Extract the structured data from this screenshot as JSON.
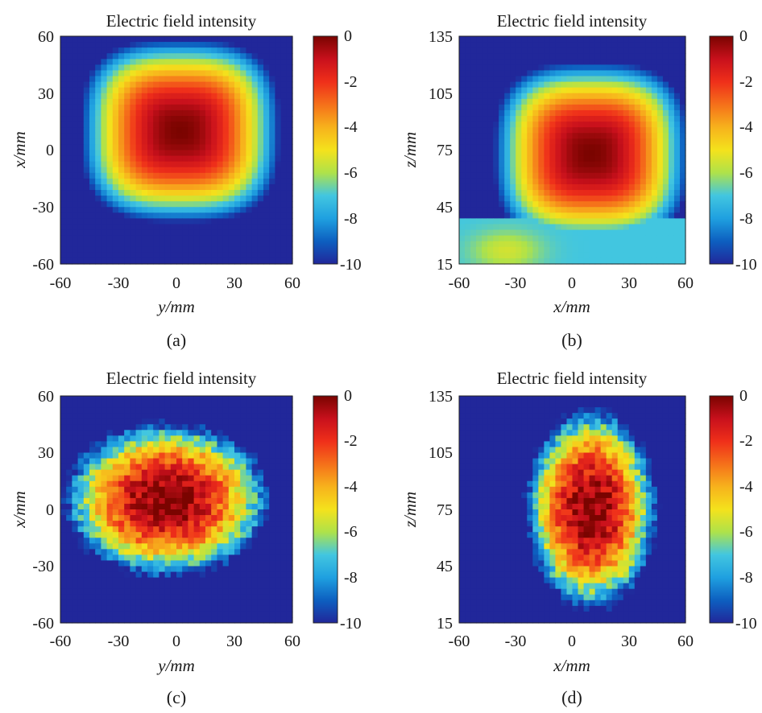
{
  "colorbar": {
    "ticks": [
      "0",
      "-2",
      "-4",
      "-6",
      "-8",
      "-10"
    ],
    "stops": [
      "#7a0400",
      "#c8101c",
      "#ef2f1a",
      "#f5701a",
      "#f7b21c",
      "#f4e21c",
      "#aee24a",
      "#42c6e0",
      "#1fa0e0",
      "#0d5fc0",
      "#21279a"
    ]
  },
  "chart_data": [
    {
      "type": "heatmap",
      "panel_label": "(a)",
      "title": "Electric field intensity",
      "xlabel": "y/mm",
      "ylabel": "x/mm",
      "x_ticks": [
        "-60",
        "-30",
        "0",
        "30",
        "60"
      ],
      "y_ticks": [
        "60",
        "30",
        "0",
        "-30",
        "-60"
      ],
      "xlim": [
        -60,
        60
      ],
      "ylim": [
        -60,
        60
      ],
      "value_range": [
        -10,
        0
      ],
      "peak": {
        "x": 2,
        "y": 10,
        "value": 0
      },
      "shape": "square-smooth"
    },
    {
      "type": "heatmap",
      "panel_label": "(b)",
      "title": "Electric field intensity",
      "xlabel": "x/mm",
      "ylabel": "z/mm",
      "x_ticks": [
        "-60",
        "-30",
        "0",
        "30",
        "60"
      ],
      "y_ticks": [
        "135",
        "105",
        "75",
        "45",
        "15"
      ],
      "xlim": [
        -60,
        60
      ],
      "ylim": [
        15,
        135
      ],
      "value_range": [
        -10,
        0
      ],
      "peak": {
        "x": 10,
        "y": 73,
        "value": 0
      },
      "shape": "square-smooth-bottom-lobe"
    },
    {
      "type": "heatmap",
      "panel_label": "(c)",
      "title": "Electric field intensity",
      "xlabel": "y/mm",
      "ylabel": "x/mm",
      "x_ticks": [
        "-60",
        "-30",
        "0",
        "30",
        "60"
      ],
      "y_ticks": [
        "60",
        "30",
        "0",
        "-30",
        "-60"
      ],
      "xlim": [
        -60,
        60
      ],
      "ylim": [
        -60,
        60
      ],
      "value_range": [
        -10,
        0
      ],
      "peak": {
        "x": -5,
        "y": 5,
        "value": 0
      },
      "shape": "noisy-blob-wide"
    },
    {
      "type": "heatmap",
      "panel_label": "(d)",
      "title": "Electric field intensity",
      "xlabel": "x/mm",
      "ylabel": "z/mm",
      "x_ticks": [
        "-60",
        "-30",
        "0",
        "30",
        "60"
      ],
      "y_ticks": [
        "135",
        "105",
        "75",
        "45",
        "15"
      ],
      "xlim": [
        -60,
        60
      ],
      "ylim": [
        15,
        135
      ],
      "value_range": [
        -10,
        0
      ],
      "peak": {
        "x": 10,
        "y": 75,
        "value": 0
      },
      "shape": "noisy-blob-tall"
    }
  ]
}
